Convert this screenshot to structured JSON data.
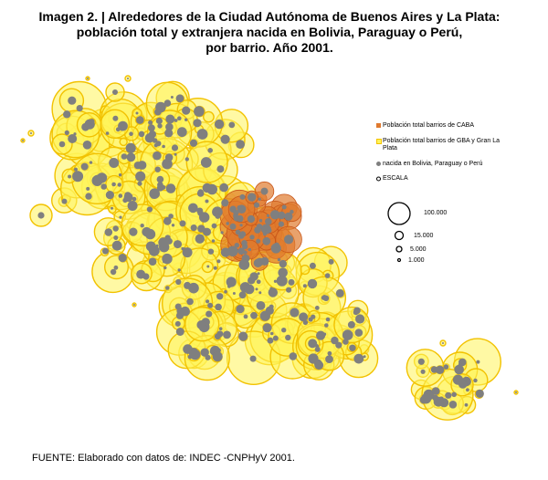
{
  "title": {
    "line1": "Imagen 2. | Alrededores de la Ciudad Autónoma de Buenos Aires y La Plata:",
    "line2": "población total y extranjera nacida en Bolivia, Paraguay o Perú,",
    "line3": "por barrio. Año 2001."
  },
  "legend": {
    "caba": "Población total barrios de CABA",
    "gba": "Población total barrios de GBA y Gran La Plata",
    "foreign": "nacida en Bolivia, Paraguay o Perú",
    "colors": {
      "caba": "#e07a2e",
      "gba": "#fff45a",
      "gba_stroke": "#f2c200",
      "foreign": "#7f7f7f"
    }
  },
  "scale": {
    "title": "ESCALA",
    "labels": [
      "100.000",
      "15.000",
      "5.000",
      "1.000"
    ],
    "values": [
      100000,
      15000,
      5000,
      1000
    ]
  },
  "source": "FUENTE: Elaborado con datos de: INDEC -CNPHyV 2001."
}
